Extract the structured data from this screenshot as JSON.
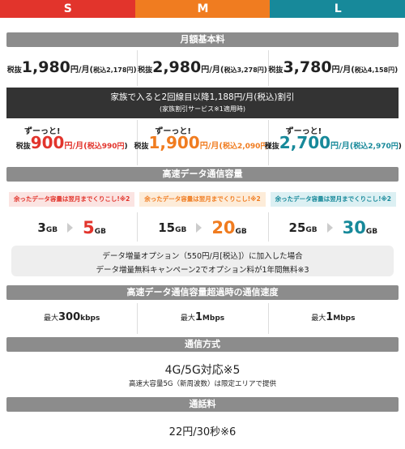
{
  "plans": [
    {
      "name": "S",
      "price": {
        "pre": "税抜",
        "amount": "1,980",
        "unit": "円/月(",
        "tax": "税込2,178円",
        "close": ")"
      },
      "discount": {
        "lead": "ずーっと!",
        "pre": "税抜",
        "amount": "900",
        "unit": "円/月(",
        "tax": "税込990円",
        "close": ")"
      },
      "rollover": "余ったデータ容量は翌月までくりこし!※2",
      "data": {
        "from": "3",
        "from_unit": "GB",
        "to": "5",
        "to_unit": "GB"
      },
      "speed": {
        "pre": "最大",
        "value": "300",
        "unit": "kbps"
      }
    },
    {
      "name": "M",
      "price": {
        "pre": "税抜",
        "amount": "2,980",
        "unit": "円/月(",
        "tax": "税込3,278円",
        "close": ")"
      },
      "discount": {
        "lead": "ずーっと!",
        "pre": "税抜",
        "amount": "1,900",
        "unit": "円/月(",
        "tax": "税込2,090円",
        "close": ")"
      },
      "rollover": "余ったデータ容量は翌月までくりこし!※2",
      "data": {
        "from": "15",
        "from_unit": "GB",
        "to": "20",
        "to_unit": "GB"
      },
      "speed": {
        "pre": "最大",
        "value": "1",
        "unit": "Mbps"
      }
    },
    {
      "name": "L",
      "price": {
        "pre": "税抜",
        "amount": "3,780",
        "unit": "円/月(",
        "tax": "税込4,158円",
        "close": ")"
      },
      "discount": {
        "lead": "ずーっと!",
        "pre": "税抜",
        "amount": "2,700",
        "unit": "円/月(",
        "tax": "税込2,970円",
        "close": ")"
      },
      "rollover": "余ったデータ容量は翌月までくりこし!※2",
      "data": {
        "from": "25",
        "from_unit": "GB",
        "to": "30",
        "to_unit": "GB"
      },
      "speed": {
        "pre": "最大",
        "value": "1",
        "unit": "Mbps"
      }
    }
  ],
  "sections": {
    "monthly": "月額基本料",
    "data": "高速データ通信容量",
    "speed": "高速データ通信容量超過時の通信速度",
    "network": "通信方式",
    "call": "通話料"
  },
  "family": {
    "line1": "家族で入ると2回線目以降1,188円/月(税込)割引",
    "line2": "(家族割引サービス※1適用時)"
  },
  "option": {
    "line1": "データ増量オプション（550円/月[税込]）に加入した場合",
    "line2": "データ増量無料キャンペーン2でオプション料が1年間無料※3"
  },
  "network": {
    "main": "4G/5G対応※5",
    "note": "高速大容量5G（新周波数）は限定エリアで提供"
  },
  "call": {
    "main": "22円/30秒※6"
  }
}
